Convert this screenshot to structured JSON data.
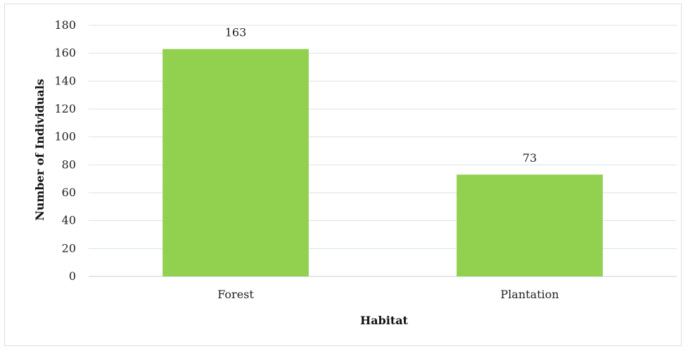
{
  "chart_data": {
    "type": "bar",
    "categories": [
      "Forest",
      "Plantation"
    ],
    "values": [
      163,
      73
    ],
    "data_labels": [
      "163",
      "73"
    ],
    "title": "",
    "xlabel": "Habitat",
    "ylabel": "Number of Individuals",
    "ylim": [
      0,
      180
    ],
    "yticks": [
      "0",
      "20",
      "40",
      "60",
      "80",
      "100",
      "120",
      "140",
      "160",
      "180"
    ],
    "grid": true,
    "legend": "none",
    "bar_color": "#92d050",
    "grid_color": "#d9e1ee"
  }
}
